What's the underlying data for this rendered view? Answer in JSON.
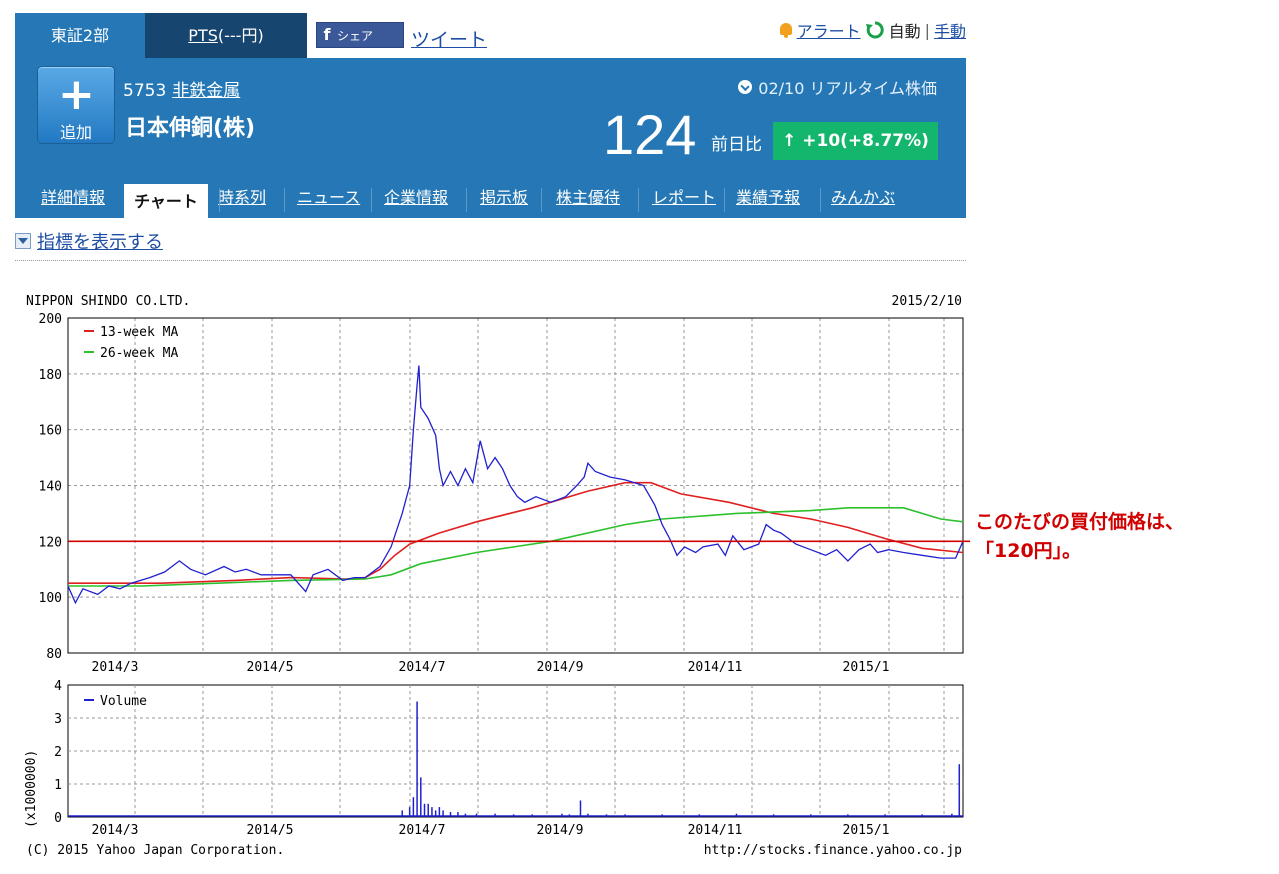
{
  "top": {
    "tabs": [
      "東証2部",
      "PTS",
      "(---円)"
    ],
    "share_label": "シェア",
    "share_icon": "facebook-icon",
    "tweet_label": "ツイート",
    "alert_label": "アラート",
    "auto_label": "自動",
    "separator": "|",
    "manual_label": "手動"
  },
  "header": {
    "add_label": "追加",
    "code": "5753",
    "industry": "非鉄金属",
    "company": "日本伸銅(株)",
    "realtime": "02/10 リアルタイム株価",
    "price": "124",
    "change_label": "前日比",
    "change_value": "↑ +10(+8.77%)",
    "accent": "#2578b5",
    "change_color": "#14b56c"
  },
  "nav": {
    "items": [
      "詳細情報",
      "チャート",
      "時系列",
      "ニュース",
      "企業情報",
      "掲示板",
      "株主優待",
      "レポート",
      "業績予報",
      "みんかぶ"
    ],
    "active": "チャート"
  },
  "indicator_toggle": "指標を表示する",
  "chart_data": [
    {
      "type": "line",
      "title": "NIPPON SHINDO CO.LTD.",
      "date": "2015/2/10",
      "x_ticks": [
        "2014/3",
        "2014/5",
        "2014/7",
        "2014/9",
        "2014/11",
        "2015/1"
      ],
      "ylim": [
        80,
        200
      ],
      "y_ticks": [
        80,
        100,
        120,
        140,
        160,
        180,
        200
      ],
      "grid": true,
      "legend_position": "top-left",
      "reference_line": 120,
      "series": [
        {
          "name": "13-week MA",
          "color": "#e02020",
          "points": [
            [
              0,
              105
            ],
            [
              25,
              105
            ],
            [
              45,
              106
            ],
            [
              60,
              107
            ],
            [
              75,
              106.5
            ],
            [
              80,
              107
            ],
            [
              84,
              110
            ],
            [
              88,
              115
            ],
            [
              92,
              119
            ],
            [
              100,
              123
            ],
            [
              110,
              127
            ],
            [
              125,
              132
            ],
            [
              140,
              138
            ],
            [
              150,
              141
            ],
            [
              157,
              141
            ],
            [
              165,
              137
            ],
            [
              178,
              134
            ],
            [
              190,
              130
            ],
            [
              200,
              128
            ],
            [
              210,
              125
            ],
            [
              220,
              121
            ],
            [
              230,
              117.5
            ],
            [
              241,
              116
            ]
          ]
        },
        {
          "name": "26-week MA",
          "color": "#2cc02c",
          "points": [
            [
              0,
              104
            ],
            [
              20,
              104
            ],
            [
              40,
              105
            ],
            [
              60,
              106
            ],
            [
              80,
              106.5
            ],
            [
              87,
              108
            ],
            [
              95,
              112
            ],
            [
              110,
              116
            ],
            [
              130,
              120
            ],
            [
              150,
              126
            ],
            [
              160,
              128
            ],
            [
              180,
              130
            ],
            [
              200,
              131
            ],
            [
              210,
              132
            ],
            [
              225,
              132
            ],
            [
              235,
              128
            ],
            [
              241,
              127
            ]
          ]
        },
        {
          "name": "",
          "color": "#2020d0",
          "points": [
            [
              0,
              104
            ],
            [
              2,
              98
            ],
            [
              4,
              103
            ],
            [
              8,
              101
            ],
            [
              11,
              104
            ],
            [
              14,
              103
            ],
            [
              17,
              105
            ],
            [
              22,
              107
            ],
            [
              26,
              109
            ],
            [
              30,
              113
            ],
            [
              33,
              110
            ],
            [
              37,
              108
            ],
            [
              42,
              111
            ],
            [
              45,
              109
            ],
            [
              48,
              110
            ],
            [
              52,
              108
            ],
            [
              56,
              108
            ],
            [
              60,
              108
            ],
            [
              64,
              102
            ],
            [
              66,
              108
            ],
            [
              70,
              110
            ],
            [
              74,
              106
            ],
            [
              77,
              107
            ],
            [
              80,
              107
            ],
            [
              84,
              111
            ],
            [
              87,
              118
            ],
            [
              90,
              130
            ],
            [
              92,
              140
            ],
            [
              93,
              160
            ],
            [
              94,
              176
            ],
            [
              94.5,
              183
            ],
            [
              95,
              168
            ],
            [
              97,
              164
            ],
            [
              99,
              158
            ],
            [
              100,
              146
            ],
            [
              101,
              140
            ],
            [
              103,
              145
            ],
            [
              105,
              140
            ],
            [
              107,
              146
            ],
            [
              109,
              141
            ],
            [
              111,
              156
            ],
            [
              113,
              146
            ],
            [
              115,
              150
            ],
            [
              117,
              146
            ],
            [
              119,
              140
            ],
            [
              121,
              136
            ],
            [
              123,
              134
            ],
            [
              126,
              136
            ],
            [
              130,
              134
            ],
            [
              134,
              136
            ],
            [
              137,
              140
            ],
            [
              139,
              143
            ],
            [
              140,
              148
            ],
            [
              142,
              145
            ],
            [
              146,
              143
            ],
            [
              150,
              142
            ],
            [
              155,
              140
            ],
            [
              158,
              133
            ],
            [
              160,
              126
            ],
            [
              162,
              121
            ],
            [
              164,
              115
            ],
            [
              166,
              118
            ],
            [
              169,
              116
            ],
            [
              171,
              118
            ],
            [
              175,
              119
            ],
            [
              177,
              115
            ],
            [
              179,
              122
            ],
            [
              182,
              117
            ],
            [
              184,
              118
            ],
            [
              186,
              119
            ],
            [
              188,
              126
            ],
            [
              190,
              124
            ],
            [
              192,
              123
            ],
            [
              196,
              119
            ],
            [
              200,
              117
            ],
            [
              204,
              115
            ],
            [
              207,
              117
            ],
            [
              210,
              113
            ],
            [
              213,
              117
            ],
            [
              216,
              119
            ],
            [
              218,
              116
            ],
            [
              221,
              117
            ],
            [
              225,
              116
            ],
            [
              230,
              115
            ],
            [
              235,
              114
            ],
            [
              239,
              114
            ],
            [
              241,
              120
            ]
          ]
        }
      ]
    },
    {
      "type": "bar",
      "series_name": "Volume",
      "ylabel": "(x1000000)",
      "ylim": [
        0,
        4
      ],
      "y_ticks": [
        0,
        1,
        2,
        3,
        4
      ],
      "x_ticks": [
        "2014/3",
        "2014/5",
        "2014/7",
        "2014/9",
        "2014/11",
        "2015/1"
      ],
      "spikes": [
        [
          90,
          0.2
        ],
        [
          92,
          0.3
        ],
        [
          93,
          0.6
        ],
        [
          94,
          3.5
        ],
        [
          95,
          1.2
        ],
        [
          96,
          0.4
        ],
        [
          97,
          0.4
        ],
        [
          98,
          0.3
        ],
        [
          99,
          0.2
        ],
        [
          100,
          0.3
        ],
        [
          101,
          0.2
        ],
        [
          103,
          0.15
        ],
        [
          105,
          0.15
        ],
        [
          107,
          0.1
        ],
        [
          110,
          0.1
        ],
        [
          115,
          0.1
        ],
        [
          120,
          0.08
        ],
        [
          125,
          0.08
        ],
        [
          133,
          0.1
        ],
        [
          135,
          0.08
        ],
        [
          138,
          0.5
        ],
        [
          140,
          0.1
        ],
        [
          145,
          0.08
        ],
        [
          150,
          0.08
        ],
        [
          160,
          0.08
        ],
        [
          170,
          0.08
        ],
        [
          180,
          0.1
        ],
        [
          190,
          0.08
        ],
        [
          200,
          0.08
        ],
        [
          210,
          0.08
        ],
        [
          220,
          0.08
        ],
        [
          230,
          0.08
        ],
        [
          238,
          0.1
        ],
        [
          240,
          1.6
        ]
      ],
      "color": "#2020d0"
    }
  ],
  "footer": {
    "copyright": "(C) 2015 Yahoo Japan Corporation.",
    "url": "http://stocks.finance.yahoo.co.jp"
  },
  "annotation": {
    "line1": "このたびの買付価格は、",
    "line2": "「120円」。",
    "color": "#d00000"
  }
}
